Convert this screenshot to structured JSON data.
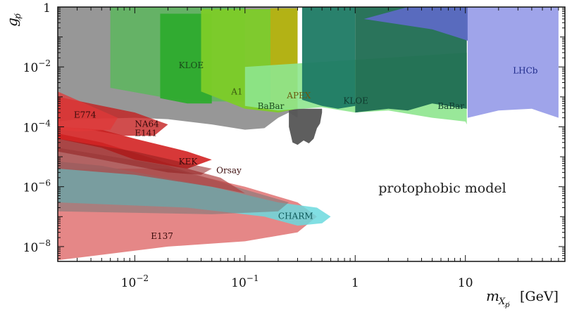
{
  "chart_data": {
    "type": "area",
    "title": "",
    "xlabel": "m_{X_p̸} [GeV]",
    "ylabel": "g_p̸",
    "x_scale": "log",
    "y_scale": "log",
    "xlim": [
      0.002,
      80
    ],
    "ylim": [
      3.2e-09,
      1
    ],
    "x_ticks": [
      {
        "value": 0.01,
        "label_base": "10",
        "label_exp": "−2"
      },
      {
        "value": 0.1,
        "label_base": "10",
        "label_exp": "−1"
      },
      {
        "value": 1,
        "label_base": "1",
        "label_exp": ""
      },
      {
        "value": 10,
        "label_base": "10",
        "label_exp": ""
      }
    ],
    "y_ticks": [
      {
        "value": 1,
        "label_base": "1",
        "label_exp": ""
      },
      {
        "value": 0.01,
        "label_base": "10",
        "label_exp": "−2"
      },
      {
        "value": 0.0001,
        "label_base": "10",
        "label_exp": "−4"
      },
      {
        "value": 1e-06,
        "label_base": "10",
        "label_exp": "−6"
      },
      {
        "value": 1e-08,
        "label_base": "10",
        "label_exp": "−8"
      }
    ],
    "axis_title_x": {
      "italic": "m",
      "sub": "X",
      "subsub": "p̸",
      "unit": "[GeV]"
    },
    "axis_title_y": {
      "italic": "g",
      "sub": "p̸"
    },
    "annotation": "protophobic model",
    "regions": [
      {
        "name": "gray-band",
        "color": "#8c8c8c",
        "opacity": 0.9,
        "points": [
          [
            0.002,
            0.00015
          ],
          [
            0.003,
            0.00018
          ],
          [
            0.01,
            0.0002
          ],
          [
            0.02,
            0.00018
          ],
          [
            0.05,
            0.00012
          ],
          [
            0.1,
            8e-05
          ],
          [
            0.15,
            9e-05
          ],
          [
            0.2,
            0.0002
          ],
          [
            0.25,
            0.0003
          ],
          [
            0.3,
            0.0002
          ],
          [
            0.3,
            1
          ],
          [
            0.002,
            1
          ]
        ]
      },
      {
        "name": "dark-gray-dip",
        "color": "#555555",
        "opacity": 0.95,
        "points": [
          [
            0.25,
            0.0004
          ],
          [
            0.25,
            0.0001
          ],
          [
            0.27,
            3e-05
          ],
          [
            0.3,
            2.5e-05
          ],
          [
            0.34,
            3.5e-05
          ],
          [
            0.38,
            2.8e-05
          ],
          [
            0.42,
            4e-05
          ],
          [
            0.45,
            9e-05
          ],
          [
            0.48,
            0.00013
          ],
          [
            0.5,
            0.0003
          ],
          [
            0.5,
            0.0004
          ]
        ]
      },
      {
        "name": "kloe-low",
        "color": "#5fb560",
        "opacity": 0.9,
        "points": [
          [
            0.006,
            1
          ],
          [
            0.006,
            0.002
          ],
          [
            0.02,
            0.0009
          ],
          [
            0.05,
            0.0007
          ],
          [
            0.1,
            0.0007
          ],
          [
            0.1,
            1
          ]
        ]
      },
      {
        "name": "kloe-mid",
        "color": "#2eab2e",
        "opacity": 0.95,
        "points": [
          [
            0.017,
            0.6
          ],
          [
            0.017,
            0.0009
          ],
          [
            0.03,
            0.0006
          ],
          [
            0.05,
            0.0006
          ],
          [
            0.05,
            0.6
          ]
        ]
      },
      {
        "name": "a1",
        "color": "#7dcc28",
        "opacity": 0.95,
        "points": [
          [
            0.04,
            0.85
          ],
          [
            0.04,
            0.0015
          ],
          [
            0.1,
            0.0004
          ],
          [
            0.2,
            0.0003
          ],
          [
            0.3,
            0.0004
          ],
          [
            0.3,
            0.85
          ]
        ]
      },
      {
        "name": "apex",
        "color": "#b6b014",
        "opacity": 0.95,
        "points": [
          [
            0.17,
            0.9
          ],
          [
            0.17,
            0.0005
          ],
          [
            0.3,
            0.0004
          ],
          [
            0.3,
            0.9
          ]
        ]
      },
      {
        "name": "babar-light",
        "color": "#8ee68e",
        "opacity": 0.9,
        "points": [
          [
            0.1,
            0.01
          ],
          [
            0.1,
            0.0005
          ],
          [
            0.2,
            0.00035
          ],
          [
            0.5,
            0.00045
          ],
          [
            1,
            0.0003
          ],
          [
            2,
            0.00035
          ],
          [
            5,
            0.0002
          ],
          [
            10,
            0.00015
          ],
          [
            10.3,
            0.00012
          ],
          [
            10.3,
            0.03
          ]
        ]
      },
      {
        "name": "kloe-high",
        "color": "#1d7a64",
        "opacity": 0.95,
        "points": [
          [
            0.33,
            1
          ],
          [
            0.33,
            0.0008
          ],
          [
            0.5,
            0.0005
          ],
          [
            0.7,
            0.0004
          ],
          [
            1,
            0.0005
          ],
          [
            1,
            1
          ]
        ]
      },
      {
        "name": "babar-dark",
        "color": "#1f6d52",
        "opacity": 0.95,
        "points": [
          [
            1,
            1
          ],
          [
            1,
            0.0003
          ],
          [
            2,
            0.0004
          ],
          [
            3,
            0.00035
          ],
          [
            5,
            0.0006
          ],
          [
            10.3,
            0.0004
          ],
          [
            10.3,
            1
          ]
        ]
      },
      {
        "name": "lhcb-top",
        "color": "#5c6ac4",
        "opacity": 0.95,
        "points": [
          [
            1.2,
            0.4
          ],
          [
            3,
            1
          ],
          [
            20,
            1
          ],
          [
            20,
            0.03
          ],
          [
            10,
            0.08
          ],
          [
            5,
            0.18
          ]
        ]
      },
      {
        "name": "lhcb",
        "color": "#9fa4ea",
        "opacity": 1,
        "points": [
          [
            10.5,
            1
          ],
          [
            10.5,
            0.0002
          ],
          [
            20,
            0.00035
          ],
          [
            40,
            0.0004
          ],
          [
            70,
            0.0002
          ],
          [
            70,
            1
          ]
        ]
      },
      {
        "name": "e137",
        "color": "#e27a7a",
        "opacity": 0.9,
        "points": [
          [
            0.002,
            3.5e-09
          ],
          [
            0.02,
            1e-08
          ],
          [
            0.1,
            1.5e-08
          ],
          [
            0.3,
            3e-08
          ],
          [
            0.45,
            1e-07
          ],
          [
            0.3,
            3e-07
          ],
          [
            0.1,
            1e-06
          ],
          [
            0.02,
            4e-06
          ],
          [
            0.002,
            4e-06
          ]
        ]
      },
      {
        "name": "charm",
        "color": "#6bd9de",
        "opacity": 0.85,
        "points": [
          [
            0.002,
            3e-07
          ],
          [
            0.03,
            2e-07
          ],
          [
            0.15,
            1e-07
          ],
          [
            0.3,
            5e-08
          ],
          [
            0.5,
            6e-08
          ],
          [
            0.6,
            1e-07
          ],
          [
            0.45,
            2e-07
          ],
          [
            0.2,
            3e-07
          ],
          [
            0.05,
            1e-06
          ],
          [
            0.005,
            5e-06
          ],
          [
            0.002,
            7e-06
          ]
        ]
      },
      {
        "name": "gray-slab",
        "color": "#777777",
        "opacity": 0.55,
        "points": [
          [
            0.002,
            1.5e-07
          ],
          [
            0.05,
            1.2e-07
          ],
          [
            0.2,
            1.5e-07
          ],
          [
            0.25,
            3e-07
          ],
          [
            0.1,
            8e-07
          ],
          [
            0.02,
            5e-06
          ],
          [
            0.002,
            2e-05
          ]
        ]
      },
      {
        "name": "orsay",
        "color": "#b04040",
        "opacity": 0.7,
        "points": [
          [
            0.002,
            4e-06
          ],
          [
            0.01,
            2.5e-06
          ],
          [
            0.05,
            1e-06
          ],
          [
            0.1,
            6e-07
          ],
          [
            0.06,
            2e-06
          ],
          [
            0.02,
            6e-06
          ],
          [
            0.005,
            3e-05
          ],
          [
            0.002,
            6e-05
          ]
        ]
      },
      {
        "name": "e141",
        "color": "#d01515",
        "opacity": 0.85,
        "points": [
          [
            0.002,
            0.0001
          ],
          [
            0.005,
            8e-05
          ],
          [
            0.01,
            4e-05
          ],
          [
            0.03,
            1.5e-05
          ],
          [
            0.05,
            8e-06
          ],
          [
            0.03,
            4e-06
          ],
          [
            0.01,
            8e-06
          ],
          [
            0.005,
            2e-05
          ],
          [
            0.002,
            4e-05
          ]
        ]
      },
      {
        "name": "na64",
        "color": "#c42020",
        "opacity": 0.8,
        "points": [
          [
            0.002,
            0.001
          ],
          [
            0.01,
            0.0003
          ],
          [
            0.02,
            0.00012
          ],
          [
            0.015,
            5e-05
          ],
          [
            0.008,
            5e-05
          ],
          [
            0.004,
            8e-05
          ],
          [
            0.002,
            0.0001
          ]
        ]
      },
      {
        "name": "e774",
        "color": "#e03838",
        "opacity": 0.75,
        "points": [
          [
            0.002,
            0.0015
          ],
          [
            0.007,
            0.0002
          ],
          [
            0.006,
            8e-05
          ],
          [
            0.003,
            7e-05
          ],
          [
            0.002,
            8e-05
          ]
        ]
      },
      {
        "name": "kek",
        "color": "#8f1e1e",
        "opacity": 0.55,
        "points": [
          [
            0.002,
            4e-05
          ],
          [
            0.01,
            1.5e-05
          ],
          [
            0.03,
            6e-06
          ],
          [
            0.05,
            4e-06
          ],
          [
            0.04,
            2.5e-06
          ],
          [
            0.02,
            3e-06
          ],
          [
            0.005,
            8e-06
          ],
          [
            0.002,
            1.5e-05
          ]
        ]
      }
    ],
    "region_labels": [
      {
        "text": "KLOE",
        "x": 0.025,
        "y": 0.009,
        "color": "#1a4a1a"
      },
      {
        "text": "A1",
        "x": 0.075,
        "y": 0.0012,
        "color": "#3a5a10"
      },
      {
        "text": "APEX",
        "x": 0.24,
        "y": 0.0009,
        "color": "#6a5a10"
      },
      {
        "text": "BaBar",
        "x": 0.13,
        "y": 0.0004,
        "color": "#1a4a1a"
      },
      {
        "text": "KLOE",
        "x": 0.78,
        "y": 0.0006,
        "color": "#0f3a2e"
      },
      {
        "text": "BaBar",
        "x": 5.6,
        "y": 0.0004,
        "color": "#0f3a2e"
      },
      {
        "text": "LHCb",
        "x": 27,
        "y": 0.006,
        "color": "#1e2a8a"
      },
      {
        "text": "E774",
        "x": 0.0028,
        "y": 0.0002,
        "color": "#3a0a0a"
      },
      {
        "text": "NA64",
        "x": 0.01,
        "y": 0.0001,
        "color": "#3a0a0a"
      },
      {
        "text": "E141",
        "x": 0.01,
        "y": 5e-05,
        "color": "#3a0a0a"
      },
      {
        "text": "KEK",
        "x": 0.025,
        "y": 5.5e-06,
        "color": "#3a0a0a"
      },
      {
        "text": "Orsay",
        "x": 0.055,
        "y": 2.8e-06,
        "color": "#3a0a0a"
      },
      {
        "text": "CHARM",
        "x": 0.2,
        "y": 8.5e-08,
        "color": "#0e5a5a"
      },
      {
        "text": "E137",
        "x": 0.014,
        "y": 1.8e-08,
        "color": "#3a0a0a"
      }
    ]
  }
}
